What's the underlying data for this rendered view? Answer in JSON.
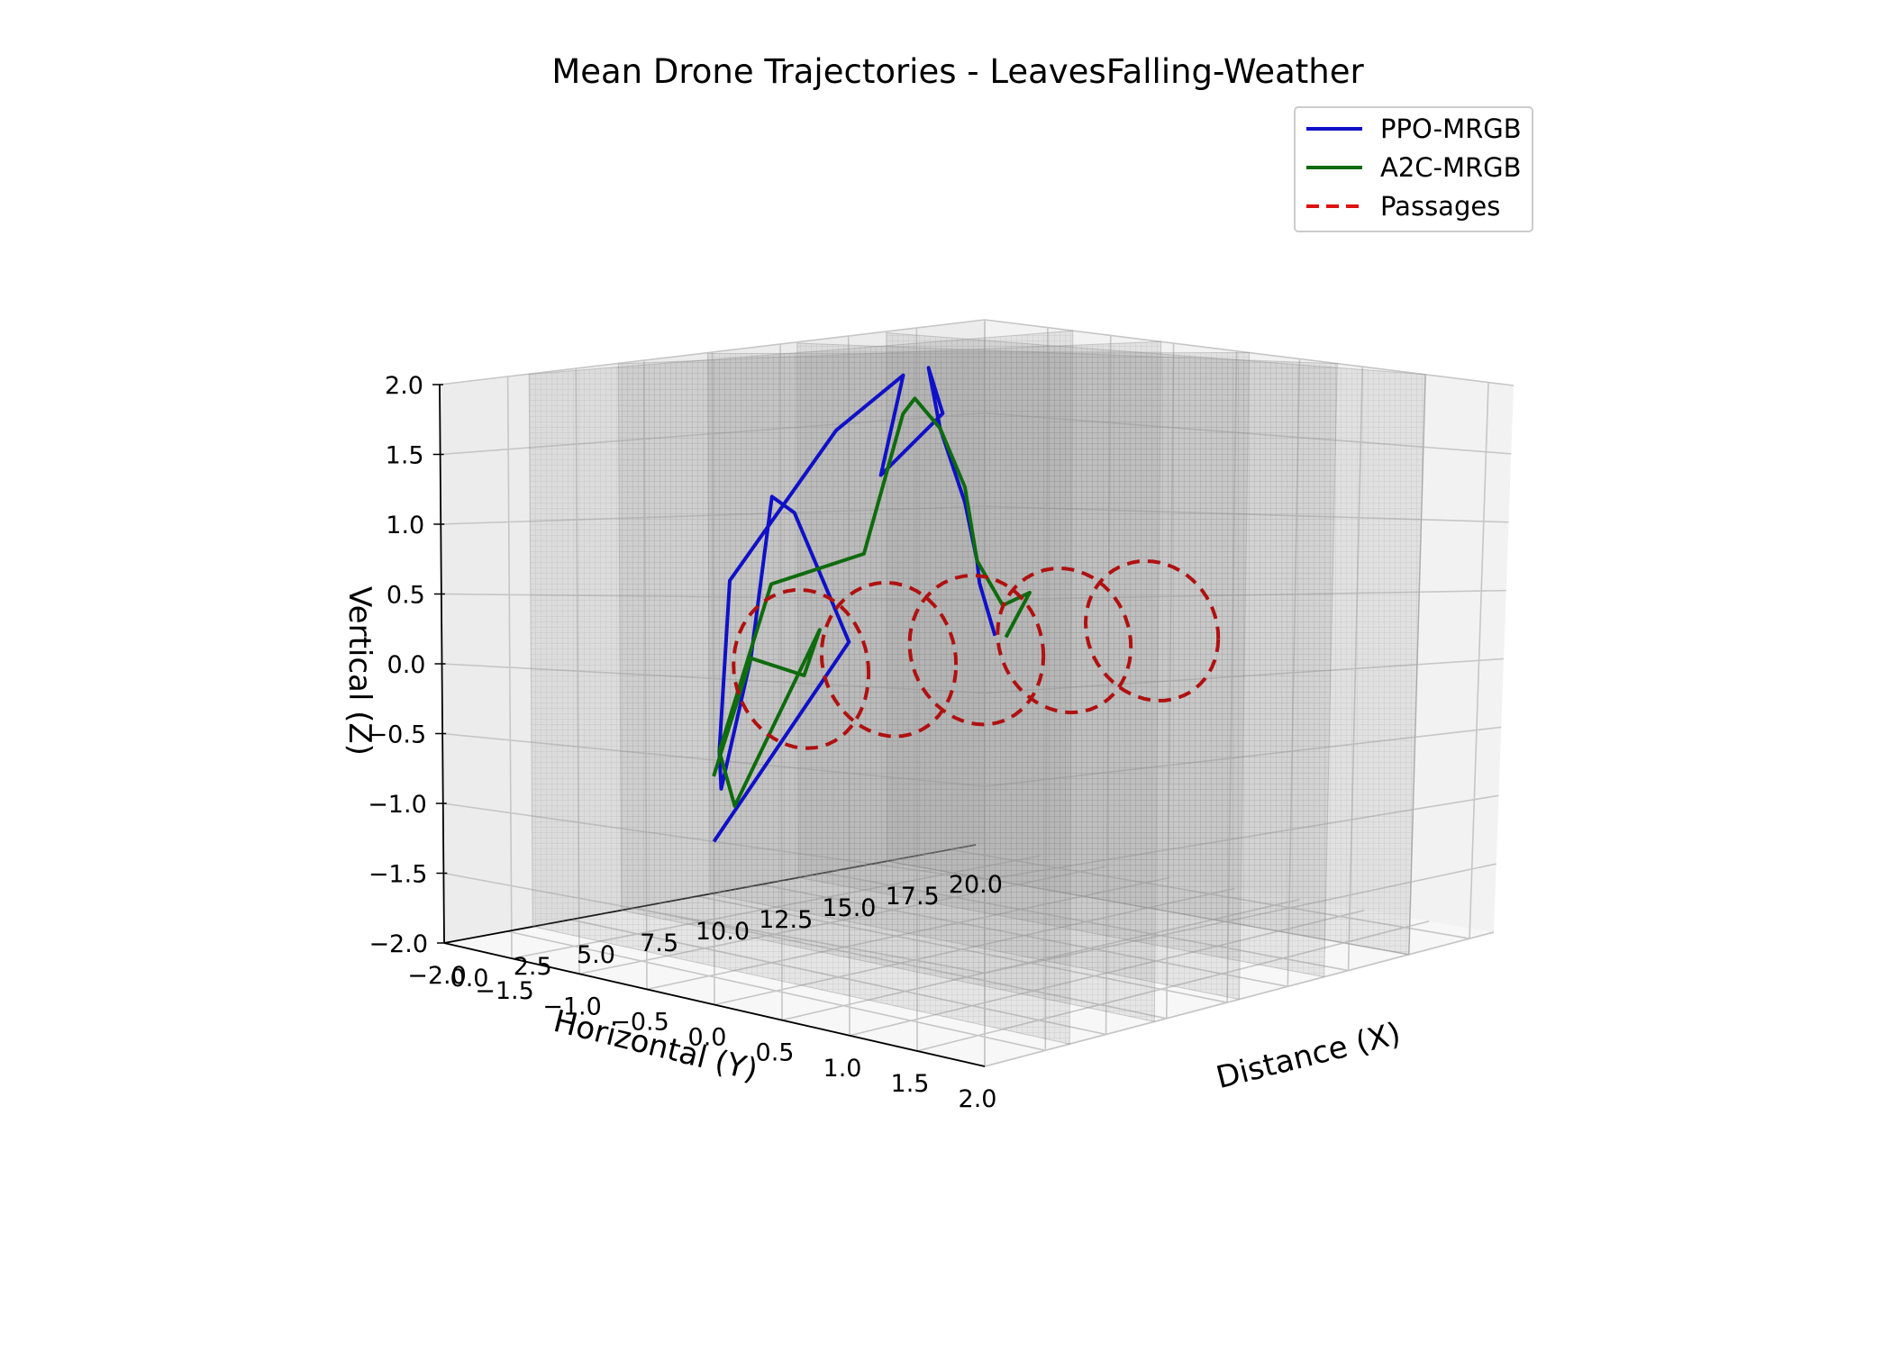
{
  "chart_data": {
    "type": "line",
    "projection": "3d",
    "title": "Mean Drone Trajectories - LeavesFalling-Weather",
    "xlabel": "Distance (X)",
    "ylabel": "Horizontal (Y)",
    "zlabel": "Vertical (Z)",
    "xlim": [
      0,
      21
    ],
    "ylim": [
      -2,
      2
    ],
    "zlim": [
      -2,
      2
    ],
    "grid": true,
    "legend_position": "upper right",
    "x_ticks": [
      "0.0",
      "2.5",
      "5.0",
      "7.5",
      "10.0",
      "12.5",
      "15.0",
      "17.5",
      "20.0"
    ],
    "y_ticks": [
      "2.0",
      "1.5",
      "1.0",
      "0.5",
      "0.0",
      "−0.5",
      "−1.0",
      "−1.5",
      "−2.0"
    ],
    "z_ticks": [
      "2.0",
      "1.5",
      "1.0",
      "0.5",
      "0.0",
      "−0.5",
      "−1.0",
      "−1.5",
      "−2.0"
    ],
    "walls_x": [
      3.5,
      7,
      10.5,
      14,
      17.5
    ],
    "series": [
      {
        "name": "PPO-MRGB",
        "color": "#1010c8",
        "style": "solid",
        "points": [
          [
            0,
            0,
            -1.0
          ],
          [
            0,
            1.0,
            0.25
          ],
          [
            0,
            0.6,
            1.0
          ],
          [
            1,
            0.25,
            1.1
          ],
          [
            1.5,
            0,
            0.1
          ],
          [
            3,
            -0.5,
            -0.8
          ],
          [
            4,
            -0.7,
            -0.6
          ],
          [
            5.5,
            -0.9,
            0.5
          ],
          [
            6.5,
            -0.3,
            1.5
          ],
          [
            7,
            0.1,
            1.85
          ],
          [
            7.2,
            -0.1,
            1.2
          ],
          [
            7.5,
            0.3,
            1.6
          ],
          [
            8,
            0.1,
            1.9
          ],
          [
            9,
            0.0,
            1.5
          ],
          [
            10,
            0.0,
            1.0
          ],
          [
            10.5,
            0.0,
            0.6
          ],
          [
            10.6,
            0.0,
            0.45
          ],
          [
            10.7,
            0.1,
            0.1
          ]
        ]
      },
      {
        "name": "A2C-MRGB",
        "color": "#0e6b0e",
        "style": "solid",
        "points": [
          [
            0,
            0,
            -0.6
          ],
          [
            1.5,
            0,
            0.1
          ],
          [
            2,
            0.3,
            0.0
          ],
          [
            1,
            0.6,
            0.3
          ],
          [
            3,
            -0.4,
            -0.9
          ],
          [
            4,
            -0.7,
            -0.6
          ],
          [
            5,
            -0.5,
            0.5
          ],
          [
            6,
            0.0,
            0.7
          ],
          [
            7,
            0.1,
            1.6
          ],
          [
            8,
            0.0,
            1.7
          ],
          [
            9,
            0.0,
            1.5
          ],
          [
            10,
            0.0,
            1.1
          ],
          [
            10.5,
            0.0,
            0.6
          ],
          [
            11,
            0.1,
            0.3
          ],
          [
            11,
            0.3,
            0.4
          ],
          [
            10.6,
            0.2,
            0.1
          ]
        ]
      },
      {
        "name": "Passages",
        "color": "#dd1111",
        "style": "dashed",
        "circles": [
          {
            "x": 3.5,
            "y": 0,
            "z": 0
          },
          {
            "x": 7,
            "y": 0,
            "z": 0
          },
          {
            "x": 10.5,
            "y": 0,
            "z": 0
          },
          {
            "x": 14,
            "y": 0,
            "z": 0
          },
          {
            "x": 17.5,
            "y": 0,
            "z": 0
          }
        ]
      }
    ]
  }
}
